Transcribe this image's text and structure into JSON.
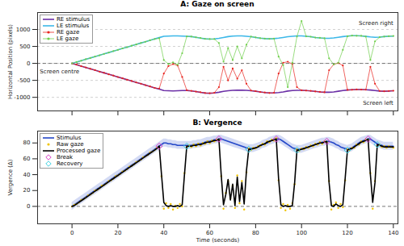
{
  "chart_data": [
    {
      "type": "line",
      "title": "A: Gaze on screen",
      "ylabel": "Horizontal Position (pixels)",
      "xlim": [
        -15,
        142
      ],
      "xticks": [
        0,
        20,
        40,
        60,
        80,
        100,
        120,
        140
      ],
      "ylim": [
        -1400,
        1500
      ],
      "yticks": [
        -1000,
        -500,
        0,
        500,
        1000
      ],
      "grid": true,
      "tick_labels": "y",
      "legend": "top-left",
      "baseline": 0,
      "annotations": [
        {
          "text": "Screen centre",
          "x": -14,
          "y": -250
        },
        {
          "text": "Screen right",
          "x": 140,
          "y": 1180
        },
        {
          "text": "Screen left",
          "x": 140,
          "y": -1180
        }
      ],
      "x": [
        0,
        2,
        4,
        6,
        8,
        10,
        12,
        14,
        16,
        18,
        20,
        22,
        24,
        26,
        28,
        30,
        32,
        34,
        36,
        38,
        40,
        42,
        44,
        46,
        48,
        50,
        52,
        54,
        56,
        58,
        60,
        62,
        64,
        66,
        68,
        70,
        72,
        74,
        76,
        78,
        80,
        82,
        84,
        86,
        88,
        90,
        92,
        94,
        96,
        98,
        100,
        102,
        104,
        106,
        108,
        110,
        112,
        114,
        116,
        118,
        120,
        122,
        124,
        126,
        128,
        130,
        132,
        134,
        136,
        138,
        140
      ],
      "series": [
        {
          "name": "RE stimulus",
          "type": "line",
          "color": "#6b2fa6",
          "values": [
            0,
            -40,
            -80,
            -120,
            -160,
            -200,
            -240,
            -280,
            -320,
            -360,
            -400,
            -440,
            -480,
            -520,
            -560,
            -600,
            -640,
            -680,
            -720,
            -760,
            -800,
            -805,
            -810,
            -805,
            -800,
            -800,
            -810,
            -830,
            -855,
            -875,
            -880,
            -870,
            -850,
            -825,
            -805,
            -795,
            -790,
            -790,
            -795,
            -805,
            -820,
            -840,
            -860,
            -870,
            -870,
            -860,
            -840,
            -815,
            -800,
            -795,
            -795,
            -800,
            -810,
            -825,
            -840,
            -850,
            -850,
            -840,
            -820,
            -800,
            -785,
            -775,
            -770,
            -770,
            -775,
            -785,
            -800,
            -815,
            -820,
            -815,
            -805
          ]
        },
        {
          "name": "LE stimulus",
          "type": "line",
          "color": "#3cb8e8",
          "values": [
            0,
            40,
            80,
            120,
            160,
            200,
            240,
            280,
            320,
            360,
            400,
            440,
            480,
            520,
            560,
            600,
            640,
            680,
            720,
            760,
            800,
            805,
            810,
            810,
            805,
            800,
            790,
            770,
            745,
            725,
            715,
            720,
            740,
            765,
            790,
            805,
            810,
            810,
            800,
            785,
            765,
            745,
            730,
            725,
            730,
            745,
            765,
            785,
            800,
            810,
            810,
            800,
            785,
            765,
            750,
            740,
            740,
            750,
            770,
            790,
            805,
            815,
            815,
            810,
            795,
            780,
            770,
            775,
            790,
            800,
            805
          ]
        },
        {
          "name": "RE gaze",
          "type": "line",
          "marker": "dot",
          "color": "#e8231d",
          "values": [
            0,
            -38,
            -82,
            -118,
            -162,
            -198,
            -242,
            -278,
            -322,
            -358,
            -402,
            -438,
            -482,
            -518,
            -562,
            -598,
            -642,
            -678,
            -722,
            -740,
            -300,
            -80,
            -20,
            -60,
            -400,
            -790,
            -808,
            -832,
            -850,
            -872,
            -878,
            -866,
            -700,
            -100,
            -500,
            -150,
            -450,
            -200,
            -600,
            -800,
            -818,
            -842,
            -858,
            -872,
            -868,
            -300,
            20,
            50,
            -20,
            -700,
            -792,
            -802,
            -808,
            -828,
            -838,
            -852,
            -200,
            -30,
            10,
            -60,
            -780,
            -778,
            -768,
            -772,
            -776,
            -100,
            -600,
            -812,
            -822,
            -812,
            -806
          ]
        },
        {
          "name": "LE gaze",
          "type": "line",
          "marker": "dot",
          "color": "#6fcf4a",
          "values": [
            0,
            42,
            78,
            122,
            158,
            202,
            238,
            282,
            318,
            362,
            398,
            442,
            478,
            522,
            558,
            602,
            638,
            682,
            718,
            740,
            100,
            -20,
            30,
            -40,
            300,
            795,
            792,
            768,
            748,
            722,
            718,
            718,
            600,
            50,
            450,
            100,
            500,
            150,
            550,
            790,
            768,
            742,
            732,
            722,
            732,
            200,
            -50,
            -700,
            20,
            790,
            1250,
            798,
            787,
            762,
            752,
            742,
            150,
            -30,
            20,
            400,
            800,
            818,
            812,
            812,
            792,
            100,
            650,
            772,
            792,
            802,
            808
          ]
        }
      ]
    },
    {
      "type": "line",
      "title": "B: Vergence",
      "xlabel": "Time (seconds)",
      "ylabel": "Vergence (Δ)",
      "xlim": [
        -15,
        142
      ],
      "xticks": [
        0,
        20,
        40,
        60,
        80,
        100,
        120,
        140
      ],
      "ylim": [
        -22,
        95
      ],
      "yticks": [
        0,
        20,
        40,
        60,
        80
      ],
      "grid": false,
      "legend": "top-left",
      "baseline": 0,
      "x": [
        0,
        1,
        2,
        3,
        4,
        5,
        6,
        7,
        8,
        9,
        10,
        11,
        12,
        13,
        14,
        15,
        16,
        17,
        18,
        19,
        20,
        21,
        22,
        23,
        24,
        25,
        26,
        27,
        28,
        29,
        30,
        31,
        32,
        33,
        34,
        35,
        36,
        37,
        38,
        39,
        40,
        41,
        42,
        43,
        44,
        45,
        46,
        47,
        48,
        49,
        50,
        51,
        52,
        53,
        54,
        55,
        56,
        57,
        58,
        59,
        60,
        61,
        62,
        63,
        64,
        65,
        66,
        67,
        68,
        69,
        70,
        71,
        72,
        73,
        74,
        75,
        76,
        77,
        78,
        79,
        80,
        81,
        82,
        83,
        84,
        85,
        86,
        87,
        88,
        89,
        90,
        91,
        92,
        93,
        94,
        95,
        96,
        97,
        98,
        99,
        100,
        101,
        102,
        103,
        104,
        105,
        106,
        107,
        108,
        109,
        110,
        111,
        112,
        113,
        114,
        115,
        116,
        117,
        118,
        119,
        120,
        121,
        122,
        123,
        124,
        125,
        126,
        127,
        128,
        129,
        130,
        131,
        132,
        133,
        134,
        135,
        136,
        137,
        138,
        139,
        140
      ],
      "series": [
        {
          "name": "Stimulus",
          "type": "line",
          "color": "#2347c8",
          "tolerance": 5,
          "values": [
            0,
            2,
            4,
            6,
            8,
            10,
            12,
            14,
            16,
            18,
            20,
            22,
            24,
            26,
            28,
            30,
            32,
            34,
            36,
            38,
            40,
            42,
            44,
            46,
            48,
            50,
            52,
            54,
            56,
            58,
            60,
            62,
            64,
            66,
            68,
            70,
            72,
            74,
            76,
            78,
            80,
            80,
            79,
            79,
            78,
            78,
            77,
            77,
            77,
            77,
            77,
            77,
            77,
            78,
            78,
            79,
            79,
            80,
            81,
            82,
            82,
            83,
            84,
            84,
            85,
            85,
            84,
            83,
            82,
            81,
            80,
            79,
            78,
            77,
            76,
            75,
            74,
            73,
            73,
            73,
            74,
            75,
            76,
            78,
            79,
            80,
            82,
            83,
            84,
            85,
            85,
            84,
            82,
            80,
            78,
            76,
            74,
            73,
            72,
            72,
            72,
            73,
            74,
            75,
            76,
            77,
            78,
            79,
            80,
            81,
            81,
            82,
            82,
            81,
            80,
            78,
            77,
            75,
            74,
            73,
            72,
            73,
            74,
            76,
            78,
            80,
            82,
            83,
            84,
            85,
            85,
            83,
            81,
            79,
            78,
            77,
            76,
            76,
            76,
            76,
            76
          ]
        },
        {
          "name": "Raw gaze",
          "type": "scatter",
          "marker": "dot",
          "color": "#f0c400",
          "values": [
            0,
            2,
            3,
            5,
            8,
            9,
            11,
            14,
            15,
            17,
            20,
            21,
            23,
            26,
            27,
            29,
            32,
            33,
            35,
            38,
            39,
            41,
            44,
            45,
            47,
            50,
            51,
            53,
            56,
            57,
            59,
            62,
            63,
            65,
            68,
            69,
            71,
            74,
            75,
            38,
            -3,
            4,
            -2,
            3,
            -4,
            1,
            -2,
            3,
            0,
            42,
            75,
            77,
            75,
            78,
            76,
            79,
            77,
            80,
            79,
            82,
            80,
            83,
            82,
            84,
            84,
            38,
            -3,
            17,
            32,
            10,
            26,
            -2,
            39,
            4,
            32,
            -4,
            43,
            73,
            71,
            74,
            73,
            76,
            76,
            79,
            78,
            82,
            81,
            84,
            83,
            86,
            33,
            -2,
            3,
            -5,
            2,
            -3,
            4,
            28,
            72,
            70,
            73,
            72,
            75,
            74,
            77,
            76,
            79,
            78,
            81,
            79,
            82,
            81,
            32,
            -4,
            2,
            5,
            -2,
            3,
            -1,
            33,
            72,
            71,
            74,
            74,
            78,
            78,
            82,
            81,
            84,
            84,
            42,
            -3,
            32,
            77,
            78,
            75,
            76,
            74,
            76,
            75,
            74
          ]
        },
        {
          "name": "Processed gaze",
          "type": "line",
          "color": "#000000",
          "values": [
            0,
            1,
            3,
            5,
            7,
            9,
            11,
            13,
            15,
            17,
            19,
            21,
            23,
            25,
            27,
            29,
            31,
            33,
            35,
            37,
            39,
            41,
            43,
            45,
            47,
            49,
            51,
            53,
            55,
            57,
            59,
            61,
            63,
            65,
            67,
            69,
            71,
            73,
            76,
            40,
            5,
            1,
            0,
            1,
            0,
            0,
            1,
            0,
            2,
            40,
            76,
            76,
            76,
            77,
            77,
            78,
            78,
            79,
            80,
            81,
            81,
            82,
            83,
            83,
            85,
            40,
            2,
            15,
            34,
            8,
            28,
            1,
            37,
            6,
            30,
            3,
            45,
            72,
            72,
            73,
            74,
            75,
            77,
            78,
            79,
            81,
            82,
            83,
            84,
            85,
            35,
            2,
            0,
            1,
            0,
            0,
            1,
            30,
            71,
            71,
            72,
            73,
            74,
            75,
            76,
            77,
            78,
            79,
            80,
            80,
            81,
            82,
            30,
            1,
            0,
            3,
            1,
            0,
            2,
            35,
            71,
            72,
            73,
            75,
            77,
            79,
            81,
            82,
            83,
            85,
            40,
            5,
            30,
            78,
            77,
            76,
            75,
            75,
            75,
            75,
            75
          ]
        },
        {
          "name": "Break",
          "type": "scatter",
          "marker": "diamond",
          "color": "#d940c8",
          "x": [
            38,
            64,
            89,
            111,
            129
          ],
          "values": [
            76,
            85,
            85,
            82,
            85
          ]
        },
        {
          "name": "Recovery",
          "type": "scatter",
          "marker": "diamond",
          "color": "#3fd0e0",
          "x": [
            50,
            77,
            98,
            120,
            133
          ],
          "values": [
            76,
            72,
            71,
            71,
            78
          ]
        }
      ]
    }
  ]
}
